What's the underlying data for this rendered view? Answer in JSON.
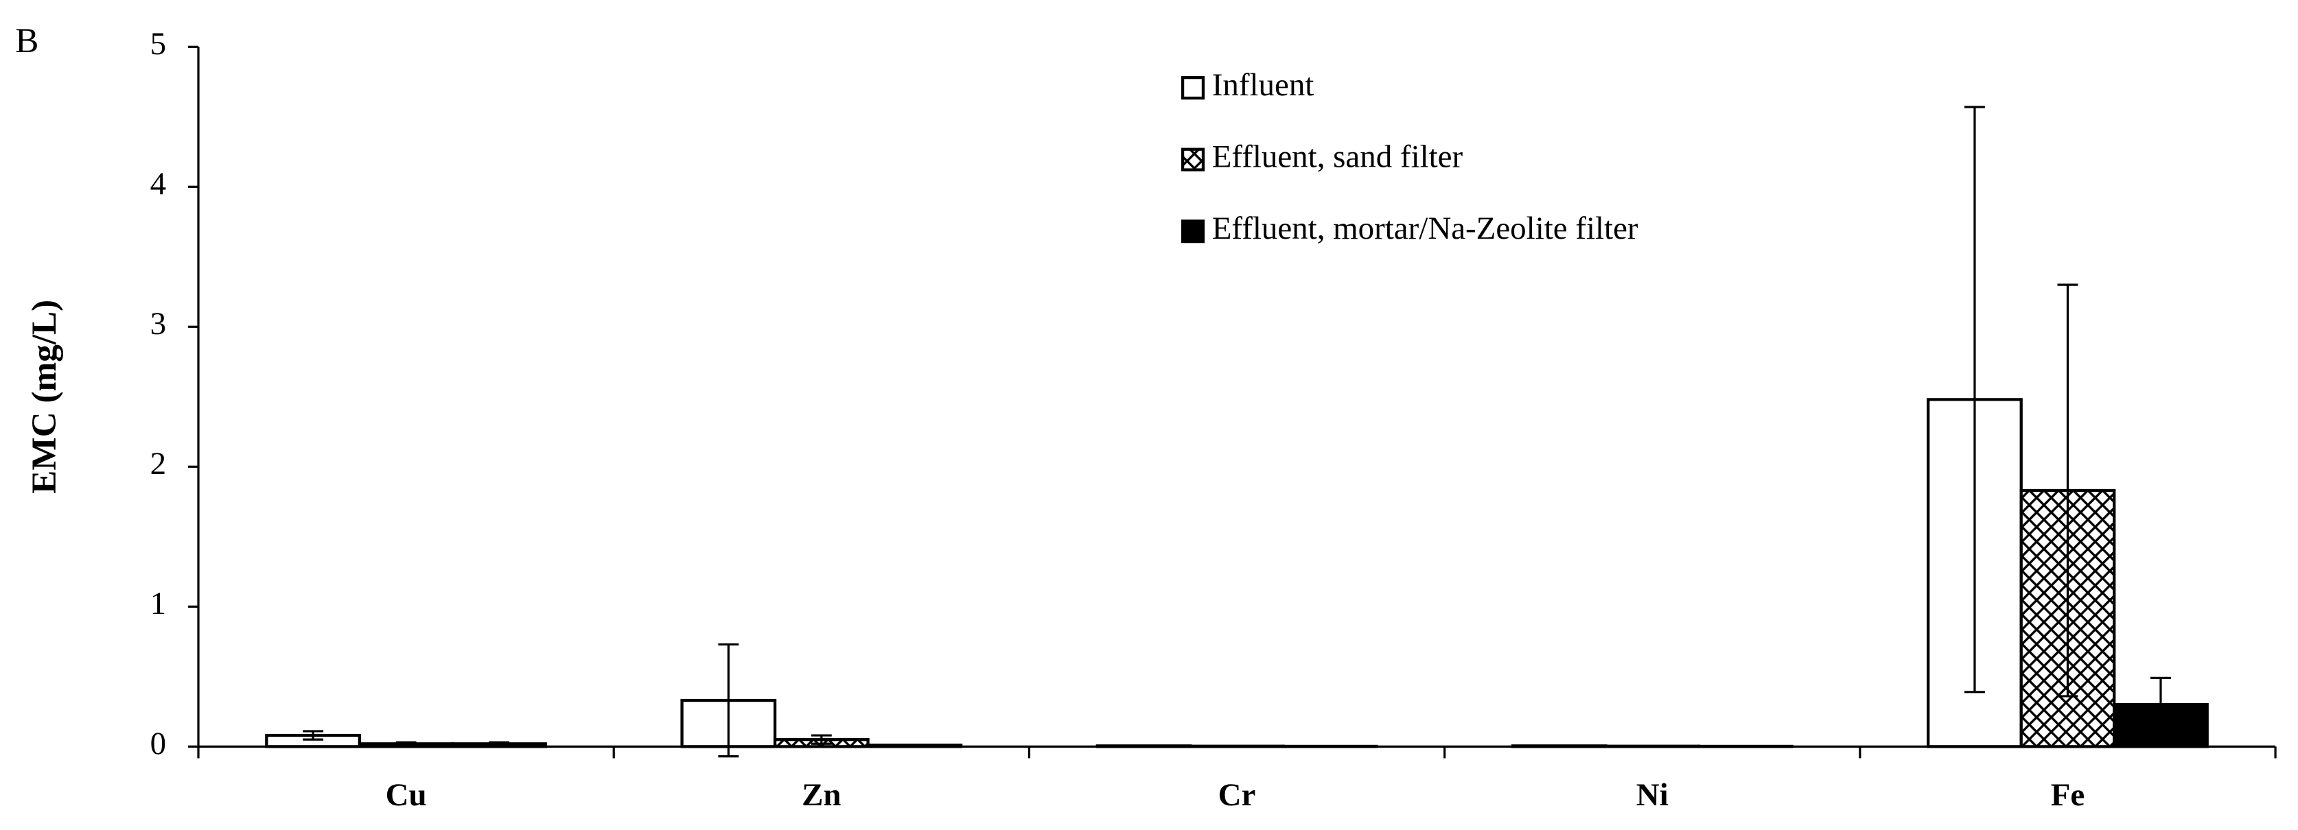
{
  "chart_data": {
    "type": "bar",
    "panel_label": "B",
    "y_label": "EMC (mg/L)",
    "categories": [
      "Cu",
      "Zn",
      "Cr",
      "Ni",
      "Fe"
    ],
    "series": [
      {
        "name": "Influent",
        "color": "#ffffff",
        "pattern": "none",
        "values": [
          0.08,
          0.33,
          0.005,
          0.005,
          2.48
        ],
        "errors": [
          0.03,
          0.4,
          0,
          0,
          2.09
        ]
      },
      {
        "name": "Effluent, sand filter",
        "color": "#ffffff",
        "pattern": "crosshatch",
        "values": [
          0.02,
          0.05,
          0.003,
          0.003,
          1.83
        ],
        "errors": [
          0.01,
          0.03,
          0,
          0,
          1.47
        ]
      },
      {
        "name": "Effluent, mortar/Na-Zeolite filter",
        "color": "#000000",
        "pattern": "none",
        "values": [
          0.02,
          0.01,
          0.002,
          0.002,
          0.3
        ],
        "errors": [
          0.01,
          0,
          0,
          0,
          0.19
        ]
      }
    ],
    "ylim": [
      0,
      5
    ],
    "yticks": [
      0,
      1,
      2,
      3,
      4,
      5
    ],
    "grid": false,
    "legend": "top"
  }
}
